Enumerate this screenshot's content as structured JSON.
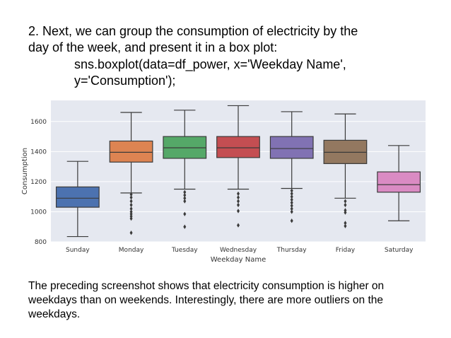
{
  "slide": {
    "heading_line1": "2. Next, we can group the consumption of electricity by the",
    "heading_line2": "day of the week, and present it in a box plot:",
    "code_line1": "sns.boxplot(data=df_power, x='Weekday Name',",
    "code_line2": "y='Consumption');",
    "footer_line1": "The preceding screenshot shows that electricity consumption is higher on",
    "footer_line2": "weekdays than on weekends. Interestingly, there are more outliers on the",
    "footer_line3": "weekdays."
  },
  "chart_data": {
    "type": "box",
    "xlabel": "Weekday Name",
    "ylabel": "Consumption",
    "ylim": [
      800,
      1740
    ],
    "yticks": [
      800,
      1000,
      1200,
      1400,
      1600
    ],
    "grid": true,
    "background": "#e5e8f0",
    "categories": [
      "Sunday",
      "Monday",
      "Tuesday",
      "Wednesday",
      "Thursday",
      "Friday",
      "Saturday"
    ],
    "boxes": [
      {
        "category": "Sunday",
        "whisker_low": 835,
        "q1": 1030,
        "median": 1090,
        "q3": 1165,
        "whisker_high": 1335,
        "outliers": [],
        "color": "#4c72b0"
      },
      {
        "category": "Monday",
        "whisker_low": 1125,
        "q1": 1330,
        "median": 1395,
        "q3": 1470,
        "whisker_high": 1660,
        "outliers": [
          1115,
          1095,
          1070,
          1045,
          1020,
          1000,
          985,
          970,
          955,
          860
        ],
        "color": "#dd8452"
      },
      {
        "category": "Tuesday",
        "whisker_low": 1150,
        "q1": 1355,
        "median": 1425,
        "q3": 1500,
        "whisker_high": 1675,
        "outliers": [
          1130,
          1110,
          1090,
          1070,
          985,
          900
        ],
        "color": "#55a868"
      },
      {
        "category": "Wednesday",
        "whisker_low": 1150,
        "q1": 1360,
        "median": 1425,
        "q3": 1500,
        "whisker_high": 1705,
        "outliers": [
          1120,
          1095,
          1070,
          1045,
          1005,
          910
        ],
        "color": "#c44e52"
      },
      {
        "category": "Thursday",
        "whisker_low": 1155,
        "q1": 1355,
        "median": 1420,
        "q3": 1500,
        "whisker_high": 1665,
        "outliers": [
          1140,
          1120,
          1100,
          1080,
          1060,
          1040,
          1020,
          1000,
          940
        ],
        "color": "#8172b3"
      },
      {
        "category": "Friday",
        "whisker_low": 1090,
        "q1": 1320,
        "median": 1395,
        "q3": 1475,
        "whisker_high": 1650,
        "outliers": [
          1070,
          1045,
          1010,
          995,
          925,
          905
        ],
        "color": "#937860"
      },
      {
        "category": "Saturday",
        "whisker_low": 940,
        "q1": 1130,
        "median": 1180,
        "q3": 1265,
        "whisker_high": 1440,
        "outliers": [],
        "color": "#da8bc3"
      }
    ]
  }
}
